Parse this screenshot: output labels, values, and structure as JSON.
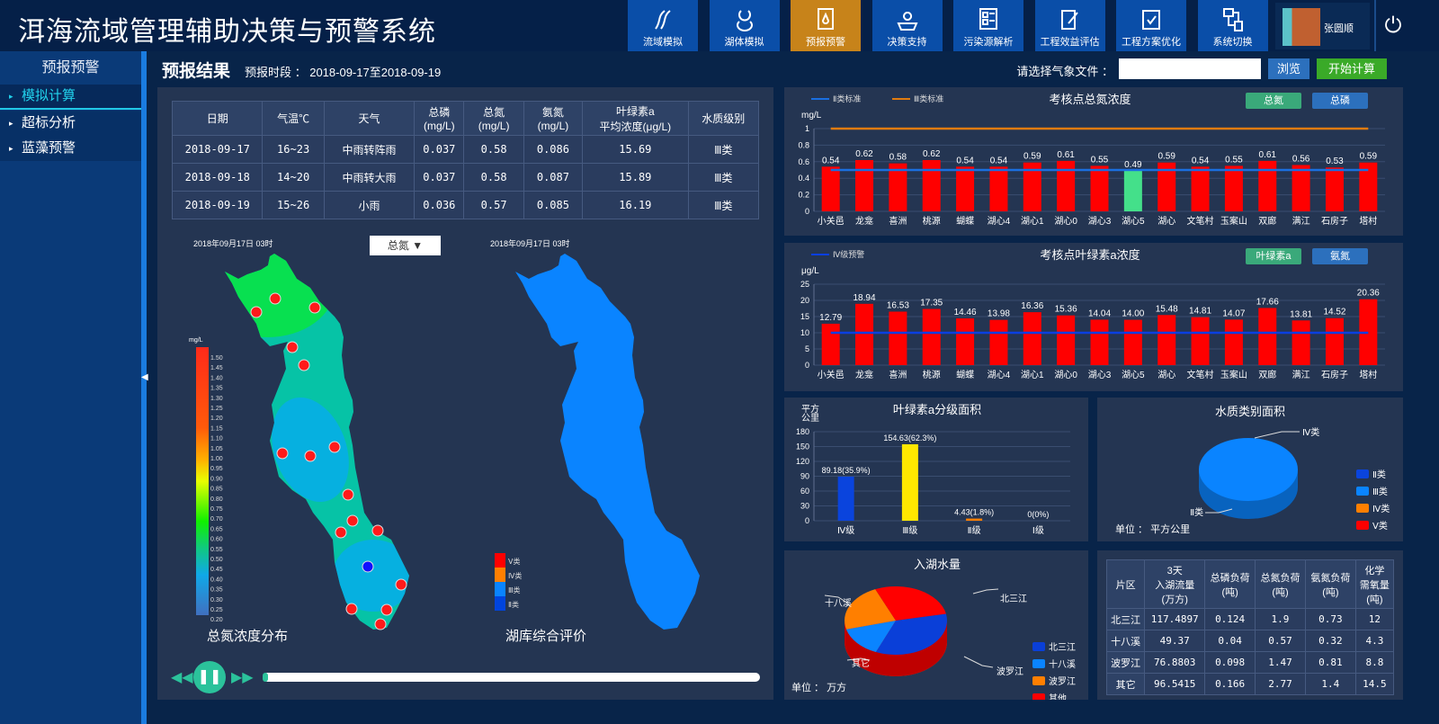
{
  "app": {
    "title": "洱海流域管理辅助决策与预警系统"
  },
  "nav": [
    {
      "label": "流域模拟",
      "icon": "river-icon"
    },
    {
      "label": "湖体模拟",
      "icon": "lake-icon"
    },
    {
      "label": "预报预警",
      "icon": "warning-doc-icon",
      "active": true
    },
    {
      "label": "决策支持",
      "icon": "gear-people-icon"
    },
    {
      "label": "污染源解析",
      "icon": "list-icon"
    },
    {
      "label": "工程效益评估",
      "icon": "edit-icon"
    },
    {
      "label": "工程方案优化",
      "icon": "clipboard-check-icon"
    },
    {
      "label": "系统切换",
      "icon": "switch-icon"
    }
  ],
  "user": {
    "name": "张圆顺"
  },
  "sidebar": {
    "title": "预报预警",
    "items": [
      {
        "label": "模拟计算",
        "active": true
      },
      {
        "label": "超标分析"
      },
      {
        "label": "蓝藻预警"
      }
    ]
  },
  "main": {
    "title": "预报结果",
    "period_label": "预报时段 ： 2018-09-17至2018-09-19",
    "file_label": "请选择气象文件 ：",
    "file_value": "",
    "browse": "浏览",
    "start": "开始计算"
  },
  "forecast_table": {
    "headers": [
      "日期",
      "气温℃",
      "天气",
      "总磷\n(mg/L)",
      "总氮\n(mg/L)",
      "氨氮\n(mg/L)",
      "叶绿素a\n平均浓度(μg/L)",
      "水质级别"
    ],
    "rows": [
      [
        "2018-09-17",
        "16~23",
        "中雨转阵雨",
        "0.037",
        "0.58",
        "0.086",
        "15.69",
        "Ⅲ类"
      ],
      [
        "2018-09-18",
        "14~20",
        "中雨转大雨",
        "0.037",
        "0.58",
        "0.087",
        "15.89",
        "Ⅲ类"
      ],
      [
        "2018-09-19",
        "15~26",
        "小雨",
        "0.036",
        "0.57",
        "0.085",
        "16.19",
        "Ⅲ类"
      ]
    ]
  },
  "maps": {
    "left": {
      "timestamp": "2018年09月17日  03时",
      "dropdown": "总氮",
      "title": "总氮浓度分布",
      "unit": "mg/L",
      "scale": [
        "1.50",
        "1.45",
        "1.40",
        "1.35",
        "1.30",
        "1.25",
        "1.20",
        "1.15",
        "1.10",
        "1.05",
        "1.00",
        "0.95",
        "0.90",
        "0.85",
        "0.80",
        "0.75",
        "0.70",
        "0.65",
        "0.60",
        "0.55",
        "0.50",
        "0.45",
        "0.40",
        "0.35",
        "0.30",
        "0.25",
        "0.20"
      ]
    },
    "right": {
      "timestamp": "2018年09月17日  03时",
      "title": "湖库综合评价",
      "legend": [
        {
          "label": "Ⅴ类",
          "color": "#ff0000"
        },
        {
          "label": "Ⅳ类",
          "color": "#ff7f00"
        },
        {
          "label": "Ⅲ类",
          "color": "#0a84ff"
        },
        {
          "label": "Ⅱ类",
          "color": "#0044dd"
        }
      ]
    }
  },
  "playback": {
    "progress": 0.01
  },
  "chart_buttons": {
    "tn": "总氮",
    "tp": "总磷",
    "chla": "叶绿素a",
    "nh": "氨氮"
  },
  "chart_data": [
    {
      "type": "bar",
      "title": "考核点总氮浓度",
      "ylabel": "mg/L",
      "ylim": [
        0,
        1
      ],
      "yticks": [
        "0",
        "0.2",
        "0.4",
        "0.6",
        "0.8",
        "1"
      ],
      "categories": [
        "小关邑",
        "龙龛",
        "喜洲",
        "桃源",
        "蝴蝶",
        "湖心4",
        "湖心1",
        "湖心0",
        "湖心3",
        "湖心5",
        "湖心",
        "文笔村",
        "玉案山",
        "双廊",
        "满江",
        "石房子",
        "塔村"
      ],
      "values": [
        0.54,
        0.62,
        0.58,
        0.62,
        0.54,
        0.54,
        0.59,
        0.61,
        0.55,
        0.49,
        0.59,
        0.54,
        0.55,
        0.61,
        0.56,
        0.53,
        0.59
      ],
      "bar_color": "#ff0000",
      "highlight": {
        "index": 9,
        "color": "#44e08a"
      },
      "lines": [
        {
          "name": "Ⅱ类标准",
          "value": 0.5,
          "color": "#1a6fe0"
        },
        {
          "name": "Ⅲ类标准",
          "value": 1,
          "color": "#e07b10"
        }
      ],
      "grid": true
    },
    {
      "type": "bar",
      "title": "考核点叶绿素a浓度",
      "ylabel": "μg/L",
      "ylim": [
        0,
        25
      ],
      "yticks": [
        "0",
        "5",
        "10",
        "15",
        "20",
        "25"
      ],
      "categories": [
        "小关邑",
        "龙龛",
        "喜洲",
        "桃源",
        "蝴蝶",
        "湖心4",
        "湖心1",
        "湖心0",
        "湖心3",
        "湖心5",
        "湖心",
        "文笔村",
        "玉案山",
        "双廊",
        "满江",
        "石房子",
        "塔村"
      ],
      "values": [
        12.79,
        18.94,
        16.53,
        17.35,
        14.46,
        13.98,
        16.36,
        15.36,
        14.04,
        14.0,
        15.48,
        14.81,
        14.07,
        17.66,
        13.81,
        14.52,
        20.36
      ],
      "labels": [
        "12.79",
        "18.94",
        "16.53",
        "17.35",
        "14.46",
        "13.98",
        "16.36",
        "15.36",
        "14.04",
        "14.00",
        "15.48",
        "14.81",
        "14.07",
        "17.66",
        "13.81",
        "14.52",
        "20.36"
      ],
      "bar_color": "#ff0000",
      "lines": [
        {
          "name": "Ⅳ级预警",
          "value": 10,
          "color": "#0a3fe0"
        }
      ],
      "grid": true
    },
    {
      "type": "bar",
      "title": "叶绿素a分级面积",
      "ylabel": "平方\n公里",
      "ylim": [
        0,
        180
      ],
      "yticks": [
        "0",
        "30",
        "60",
        "90",
        "120",
        "150",
        "180"
      ],
      "categories": [
        "Ⅳ级",
        "Ⅲ级",
        "Ⅱ级",
        "Ⅰ级"
      ],
      "values": [
        89.18,
        154.63,
        4.43,
        0
      ],
      "labels": [
        "89.18(35.9%)",
        "154.63(62.3%)",
        "4.43(1.8%)",
        "0(0%)"
      ],
      "colors": [
        "#0a44dd",
        "#ffe800",
        "#ff7f00",
        "#888888"
      ],
      "grid": true
    },
    {
      "type": "pie",
      "title": "水质类别面积",
      "unit_label": "单位 ：  平方公里",
      "categories": [
        "Ⅱ类",
        "Ⅲ类",
        "Ⅳ类",
        "Ⅴ类"
      ],
      "colors": [
        "#0a44dd",
        "#0a84ff",
        "#ff7f00",
        "#ff0000"
      ],
      "slice_labels": [
        "Ⅳ类",
        "Ⅱ类"
      ],
      "legend": "right"
    },
    {
      "type": "pie",
      "title": "入湖水量",
      "unit_label": "单位 ：  万方",
      "categories": [
        "北三江",
        "十八溪",
        "波罗江",
        "其他"
      ],
      "slice_labels": [
        "北三江",
        "十八溪",
        "波罗江",
        "其它"
      ],
      "values": [
        117.4897,
        49.37,
        76.8803,
        96.5415
      ],
      "colors": [
        "#0a3fd8",
        "#0a84ff",
        "#ff7f00",
        "#ff0000"
      ],
      "legend": "right"
    }
  ],
  "inflow_table": {
    "headers": [
      "片区",
      "3天\n入湖流量\n(万方)",
      "总磷负荷\n(吨)",
      "总氮负荷\n(吨)",
      "氨氮负荷\n(吨)",
      "化学\n需氧量\n(吨)"
    ],
    "rows": [
      [
        "北三江",
        "117.4897",
        "0.124",
        "1.9",
        "0.73",
        "12"
      ],
      [
        "十八溪",
        "49.37",
        "0.04",
        "0.57",
        "0.32",
        "4.3"
      ],
      [
        "波罗江",
        "76.8803",
        "0.098",
        "1.47",
        "0.81",
        "8.8"
      ],
      [
        "其它",
        "96.5415",
        "0.166",
        "2.77",
        "1.4",
        "14.5"
      ]
    ]
  }
}
